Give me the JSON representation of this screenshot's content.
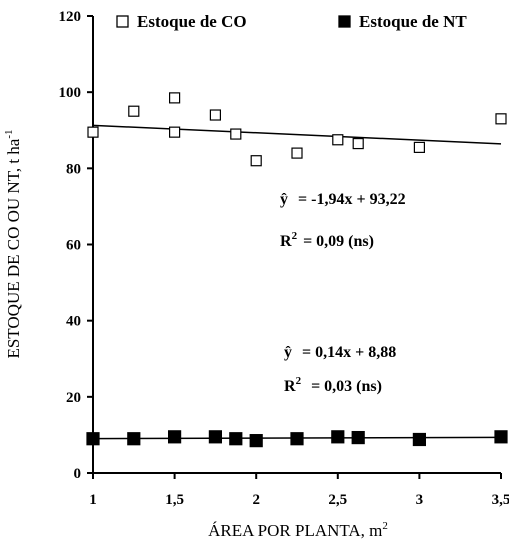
{
  "chart_data": {
    "type": "scatter",
    "xlabel": "ÁREA POR PLANTA, m",
    "xlabel_sup": "2",
    "ylabel": "ESTOQUE DE CO OU NT, t ha",
    "ylabel_sup": "-1",
    "xlim": [
      1,
      3.5
    ],
    "ylim": [
      0,
      120
    ],
    "xticks": [
      "1",
      "1,5",
      "2",
      "2,5",
      "3",
      "3,5"
    ],
    "xtick_values": [
      1,
      1.5,
      2,
      2.5,
      3,
      3.5
    ],
    "yticks": [
      "0",
      "20",
      "40",
      "60",
      "80",
      "100",
      "120"
    ],
    "ytick_values": [
      0,
      20,
      40,
      60,
      80,
      100,
      120
    ],
    "grid": false,
    "legend_position": "top",
    "series": [
      {
        "name": "Estoque de CO",
        "marker": "open-square",
        "color": "#000000",
        "points": [
          [
            1.0,
            89.5
          ],
          [
            1.25,
            95.0
          ],
          [
            1.5,
            98.5
          ],
          [
            1.5,
            89.5
          ],
          [
            1.75,
            94.0
          ],
          [
            1.875,
            89.0
          ],
          [
            2.0,
            82.0
          ],
          [
            2.25,
            84.0
          ],
          [
            2.5,
            87.5
          ],
          [
            2.625,
            86.5
          ],
          [
            3.0,
            85.5
          ],
          [
            3.5,
            93.0
          ]
        ],
        "trend": {
          "slope": -1.94,
          "intercept": 93.22
        },
        "equation": "= -1,94x + 93,22",
        "r2": "= 0,09 (ns)"
      },
      {
        "name": "Estoque de NT",
        "marker": "filled-square",
        "color": "#000000",
        "points": [
          [
            1.0,
            9.0
          ],
          [
            1.25,
            9.0
          ],
          [
            1.5,
            9.5
          ],
          [
            1.75,
            9.5
          ],
          [
            1.875,
            9.0
          ],
          [
            2.0,
            8.5
          ],
          [
            2.25,
            9.0
          ],
          [
            2.5,
            9.5
          ],
          [
            2.625,
            9.3
          ],
          [
            3.0,
            8.8
          ],
          [
            3.5,
            9.5
          ]
        ],
        "trend": {
          "slope": 0.14,
          "intercept": 8.88
        },
        "equation": "= 0,14x + 8,88",
        "r2": "= 0,03 (ns)"
      }
    ],
    "annotation_yhat": "ŷ",
    "annotation_r": "R",
    "annotation_r_sup": "2"
  }
}
